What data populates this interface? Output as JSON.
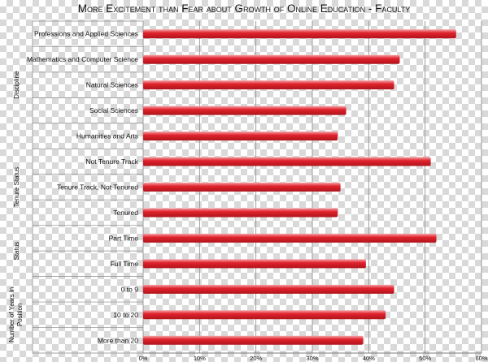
{
  "chart_data": {
    "type": "bar",
    "orientation": "horizontal",
    "title": "More Excitement than Fear about Growth of Online Education - Faculty",
    "xlabel": "",
    "ylabel": "",
    "xlim": [
      0,
      60
    ],
    "x_ticks": [
      "0%",
      "10%",
      "20%",
      "30%",
      "40%",
      "50%",
      "60%"
    ],
    "grid": true,
    "bar_color": "#e0222c",
    "groups": [
      {
        "name": "Discipline",
        "categories": [
          "Professions and Applied Sciences",
          "Mathematics and Computer Science",
          "Natural Sciences",
          "Social Sciences",
          "Humanities and Arts"
        ]
      },
      {
        "name": "Tenure Status",
        "categories": [
          "Not Tenure Track",
          "Tenure Track, Not Tenured",
          "Tenured"
        ]
      },
      {
        "name": "Status",
        "categories": [
          "Part Time",
          "Full Time"
        ]
      },
      {
        "name": "Number of Years in Position",
        "categories": [
          "0 to 9",
          "10 to 20",
          "More than 20"
        ]
      }
    ],
    "categories": [
      "Professions and Applied Sciences",
      "Mathematics and Computer Science",
      "Natural Sciences",
      "Social Sciences",
      "Humanities and Arts",
      "Not Tenure Track",
      "Tenure Track, Not Tenured",
      "Tenured",
      "Part Time",
      "Full Time",
      "0 to 9",
      "10 to 20",
      "More than 20"
    ],
    "values": [
      55.5,
      45.5,
      44.5,
      36,
      34.5,
      51,
      35,
      34.5,
      52,
      39.5,
      44.5,
      43,
      39
    ]
  }
}
